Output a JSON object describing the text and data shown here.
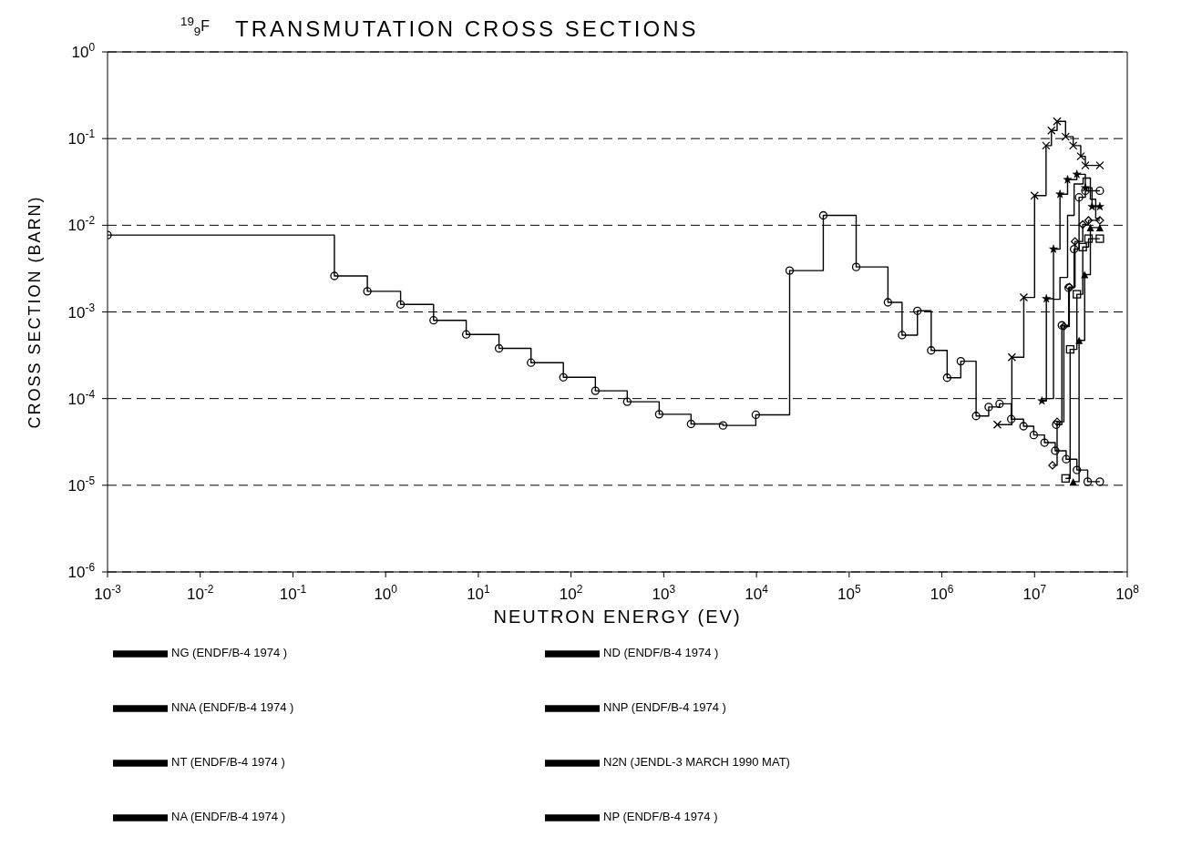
{
  "chart_data": {
    "type": "step",
    "title": "TRANSMUTATION CROSS SECTIONS",
    "annotations": [
      "$^{19}$$_{9}$F"
    ],
    "xlabel": "NEUTRON ENERGY (EV)",
    "ylabel": "CROSS SECTION (BARN)",
    "xlim": [
      0.001,
      100000000
    ],
    "ylim": [
      1e-06,
      1
    ],
    "xticks": [
      {
        "value": 0.001,
        "label": "10$^{-3}$"
      },
      {
        "value": 0.01,
        "label": "10$^{-2}$"
      },
      {
        "value": 0.1,
        "label": "10$^{-1}$"
      },
      {
        "value": 1,
        "label": "10$^{0}$"
      },
      {
        "value": 10,
        "label": "10$^{1}$"
      },
      {
        "value": 100,
        "label": "10$^{2}$"
      },
      {
        "value": 1000,
        "label": "10$^{3}$"
      },
      {
        "value": 10000,
        "label": "10$^{4}$"
      },
      {
        "value": 100000,
        "label": "10$^{5}$"
      },
      {
        "value": 1000000,
        "label": "10$^{6}$"
      },
      {
        "value": 10000000,
        "label": "10$^{7}$"
      },
      {
        "value": 100000000,
        "label": "10$^{8}$"
      }
    ],
    "yticks": [
      {
        "value": 1e-06,
        "label": "10$^{-6}$"
      },
      {
        "value": 1e-05,
        "label": "10$^{-5}$"
      },
      {
        "value": 0.0001,
        "label": "10$^{-4}$"
      },
      {
        "value": 0.001,
        "label": "10$^{-3}$"
      },
      {
        "value": 0.01,
        "label": "10$^{-2}$"
      },
      {
        "value": 0.1,
        "label": "10$^{-1}$"
      },
      {
        "value": 1,
        "label": "10$^{0}$"
      }
    ],
    "log": "xy",
    "grid": "y",
    "legend": "bottom",
    "line_style": "solid",
    "series": [
      {
        "name": "NG (ENDF/B-4 1974 )",
        "color": "#000000",
        "marker": "circle",
        "x": [
          0.001,
          0.28,
          0.635,
          1.45,
          3.29,
          7.4,
          16.7,
          37,
          82.6,
          183,
          404,
          893,
          1970,
          4360,
          9840,
          22800,
          52600,
          119000,
          262000,
          372000,
          545000,
          767000,
          1140000,
          1600000,
          2340000,
          3200000,
          4190000,
          5600000,
          7600000,
          9800000,
          12800000,
          16700000,
          21900000,
          28600000,
          37400000,
          50600000
        ],
        "values": [
          0.0077,
          0.0026,
          0.00173,
          0.00122,
          0.0008,
          0.00055,
          0.00038,
          0.00026,
          0.000176,
          0.000123,
          9.2e-05,
          6.6e-05,
          5.1e-05,
          4.9e-05,
          6.5e-05,
          0.003,
          0.013,
          0.0033,
          0.00129,
          0.00054,
          0.00103,
          0.00036,
          0.000174,
          0.00027,
          6.3e-05,
          8e-05,
          8.7e-05,
          5.8e-05,
          4.8e-05,
          3.8e-05,
          3.1e-05,
          2.5e-05,
          2e-05,
          1.5e-05,
          1.1e-05,
          1.1e-05
        ]
      },
      {
        "name": "ND (ENDF/B-4 1974 )",
        "color": "#000000",
        "marker": "diamond",
        "x": [
          15600000,
          17500000,
          20700000,
          23700000,
          27300000,
          33100000,
          38200000,
          50600000
        ],
        "values": [
          1.7e-05,
          5.4e-05,
          0.00068,
          0.00194,
          0.0065,
          0.0102,
          0.0114,
          0.0114
        ]
      },
      {
        "name": "NNA (ENDF/B-4 1974 )",
        "color": "#000000",
        "marker": "triangle",
        "x": [
          26100000,
          30200000,
          34700000,
          40000000,
          50600000
        ],
        "values": [
          1.1e-05,
          0.00047,
          0.0027,
          0.0094,
          0.0094
        ]
      },
      {
        "name": "NNP (ENDF/B-4 1974 )",
        "color": "#000000",
        "marker": "circle",
        "x": [
          17100000,
          19700000,
          23300000,
          26700000,
          30200000,
          35300000,
          50600000
        ],
        "values": [
          5e-05,
          0.0007,
          0.0019,
          0.0053,
          0.021,
          0.025,
          0.025
        ]
      },
      {
        "name": "NT (ENDF/B-4 1974 )",
        "color": "#000000",
        "marker": "square",
        "x": [
          21600000,
          24200000,
          28600000,
          33100000,
          38200000,
          50600000
        ],
        "values": [
          1.2e-05,
          0.00037,
          0.0016,
          0.0056,
          0.007,
          0.007
        ]
      },
      {
        "name": "N2N (JENDL-3 MARCH 1990 MAT)",
        "color": "#000000",
        "marker": "star",
        "x": [
          12000000,
          13400000,
          16000000,
          18800000,
          22700000,
          28600000,
          35300000,
          41700000,
          50600000
        ],
        "values": [
          9.4e-05,
          0.00142,
          0.0053,
          0.0228,
          0.0336,
          0.0387,
          0.027,
          0.0164,
          0.0164
        ]
      },
      {
        "name": "NA (ENDF/B-4 1974 )",
        "color": "#000000",
        "marker": "cross",
        "x": [
          3970000,
          5690000,
          7650000,
          10000000,
          13300000,
          15200000,
          17500000,
          21600000,
          26100000,
          31500000,
          35300000,
          50600000
        ],
        "values": [
          5e-05,
          0.0003,
          0.00147,
          0.022,
          0.083,
          0.124,
          0.158,
          0.105,
          0.083,
          0.0625,
          0.049,
          0.049
        ]
      },
      {
        "name": "NP (ENDF/B-4 1974 )",
        "color": "#000000",
        "marker": "none",
        "x": [
          13400000,
          16000000,
          18800000,
          22700000,
          26700000,
          33400000,
          40000000,
          45700000,
          50600000
        ],
        "values": [
          0.0001,
          0.0014,
          0.0025,
          0.013,
          0.03,
          0.035,
          0.02,
          0.012,
          0.012
        ]
      }
    ]
  }
}
